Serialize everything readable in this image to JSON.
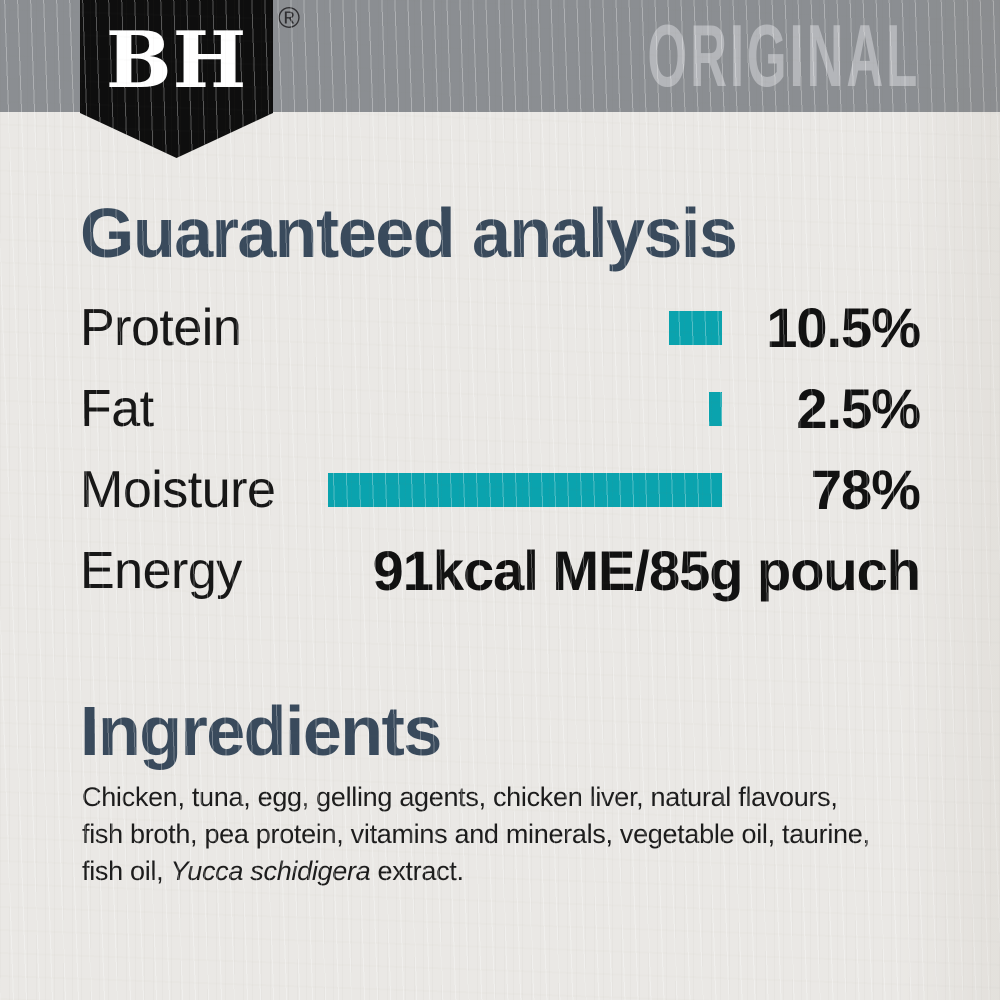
{
  "header": {
    "brand": "BH",
    "registered_mark": "®",
    "variant": "ORIGINAL"
  },
  "colors": {
    "band_gray": "#8b8e92",
    "badge_black": "#0e0e0e",
    "accent_teal": "#0aa3ae",
    "heading_blue": "#394a5c",
    "variant_text_gray": "#b4b6ba",
    "background_paper": "#eae8e5"
  },
  "guaranteed_analysis": {
    "title": "Guaranteed analysis",
    "rows": [
      {
        "label": "Protein",
        "value": "10.5%",
        "percent": 10.5
      },
      {
        "label": "Fat",
        "value": "2.5%",
        "percent": 2.5
      },
      {
        "label": "Moisture",
        "value": "78%",
        "percent": 78
      },
      {
        "label": "Energy",
        "value": "91kcal ME/85g pouch",
        "percent": null
      }
    ]
  },
  "chart_data": {
    "type": "bar",
    "orientation": "horizontal",
    "title": "Guaranteed analysis",
    "categories": [
      "Protein",
      "Fat",
      "Moisture"
    ],
    "values": [
      10.5,
      2.5,
      78
    ],
    "unit": "%",
    "bar_color": "#0aa3ae",
    "annotations": [
      "Energy: 91kcal ME/85g pouch"
    ],
    "xlim": [
      0,
      78
    ],
    "grid": false,
    "legend": false
  },
  "ingredients": {
    "title": "Ingredients",
    "lines": [
      [
        {
          "text": "Chicken, tuna, egg, gelling agents, chicken liver, natural flavours,",
          "italic": false
        }
      ],
      [
        {
          "text": "fish broth, pea protein, vitamins and minerals, vegetable oil, taurine,",
          "italic": false
        }
      ],
      [
        {
          "text": "fish oil, ",
          "italic": false
        },
        {
          "text": "Yucca schidigera",
          "italic": true
        },
        {
          "text": " extract.",
          "italic": false
        }
      ]
    ],
    "full_text": "Chicken, tuna, egg, gelling agents, chicken liver, natural flavours, fish broth, pea protein, vitamins and minerals, vegetable oil, taurine, fish oil, Yucca schidigera extract."
  }
}
